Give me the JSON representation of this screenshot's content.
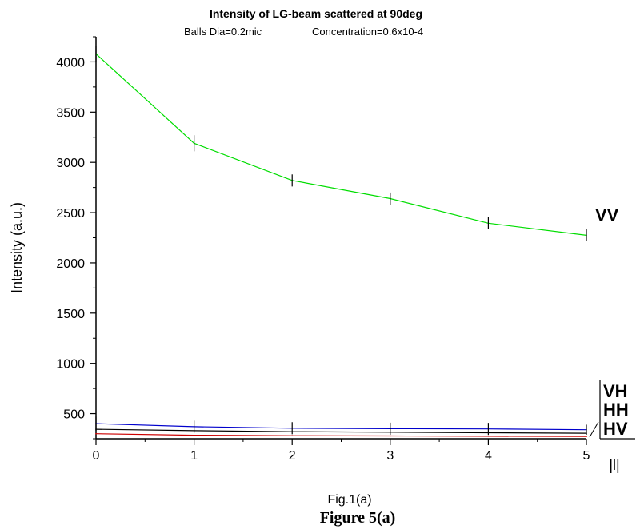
{
  "chart_data": {
    "type": "line",
    "title": "Intensity of LG-beam scattered at 90deg",
    "subtitle_left": "Balls Dia=0.2mic",
    "subtitle_right": "Concentration=0.6x10-4",
    "xlabel": "Fig.1(a)",
    "ylabel": "Intensity (a.u.)",
    "caption": "Figure 5(a)",
    "xlim": [
      0,
      5
    ],
    "ylim": [
      250,
      4250
    ],
    "x_ticks": [
      "0",
      "1",
      "2",
      "3",
      "4",
      "5"
    ],
    "y_ticks": [
      "500",
      "1000",
      "1500",
      "2000",
      "2500",
      "3000",
      "3500",
      "4000"
    ],
    "x_extra_label": "|l|",
    "x": [
      0,
      1,
      2,
      3,
      4,
      5
    ],
    "series": [
      {
        "name": "VV",
        "color": "#00dd00",
        "values": [
          4080,
          3190,
          2820,
          2640,
          2395,
          2275
        ],
        "error": [
          80,
          80,
          60,
          60,
          60,
          60
        ]
      },
      {
        "name": "VH",
        "color": "#0000cc",
        "values": [
          400,
          370,
          355,
          350,
          348,
          340
        ],
        "error": [
          70,
          60,
          60,
          60,
          60,
          50
        ]
      },
      {
        "name": "HH",
        "color": "#000000",
        "values": [
          345,
          330,
          320,
          315,
          310,
          305
        ],
        "error": [
          0,
          0,
          0,
          0,
          0,
          0
        ]
      },
      {
        "name": "HV",
        "color": "#cc0000",
        "values": [
          300,
          285,
          280,
          278,
          275,
          272
        ],
        "error": [
          0,
          0,
          0,
          0,
          0,
          0
        ]
      }
    ],
    "grid": false,
    "legend": "inline-right"
  }
}
